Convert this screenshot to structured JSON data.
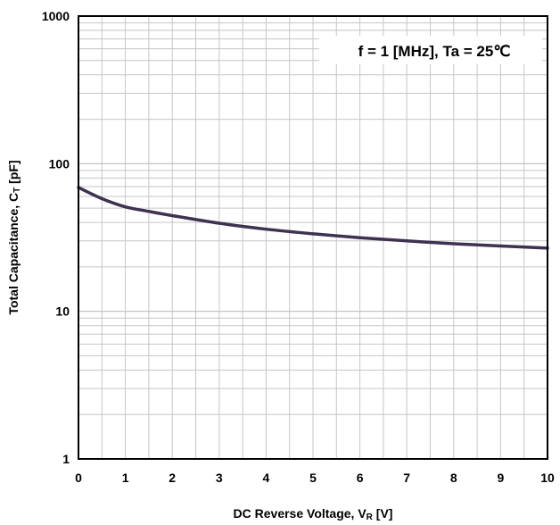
{
  "chart_data": {
    "type": "line",
    "title": "",
    "xlabel": {
      "main": "DC Reverse Voltage, V",
      "sub": "R",
      "unit": " [V]"
    },
    "ylabel": {
      "main": "Total Capacitance, C",
      "sub": "T",
      "unit": " [pF]"
    },
    "annotation": "f = 1 [MHz], Ta = 25℃",
    "xlim": [
      0,
      10
    ],
    "ylim": [
      1,
      1000
    ],
    "yscale": "log",
    "grid": true,
    "x_ticks": [
      "0",
      "1",
      "2",
      "3",
      "4",
      "5",
      "6",
      "7",
      "8",
      "9",
      "10"
    ],
    "y_ticks": [
      "1",
      "10",
      "100",
      "1000"
    ],
    "series": [
      {
        "color": "#3f3150",
        "x": [
          0,
          0.5,
          1,
          1.5,
          2,
          3,
          4,
          5,
          6,
          7,
          8,
          9,
          10
        ],
        "y": [
          69,
          58,
          51,
          47.5,
          44.5,
          39.5,
          36,
          33.5,
          31.5,
          30,
          28.7,
          27.7,
          26.8
        ]
      }
    ]
  }
}
